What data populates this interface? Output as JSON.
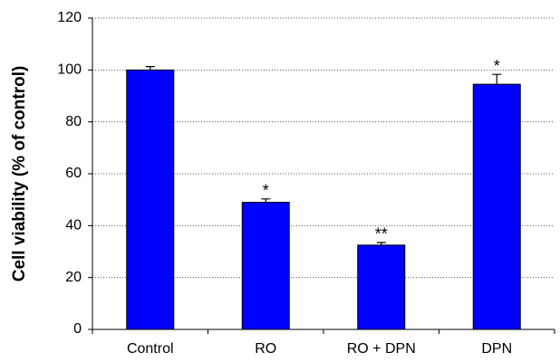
{
  "chart_data": {
    "type": "bar",
    "y_label": "Cell viability (% of control)",
    "categories": [
      "Control",
      "RO",
      "RO + DPN",
      "DPN"
    ],
    "values": [
      100,
      49,
      32.5,
      94.5
    ],
    "errors": [
      1.3,
      1.3,
      1,
      3.8
    ],
    "annotations": [
      null,
      "*",
      "**",
      "*"
    ],
    "color": "#0000ff",
    "ylim": [
      0,
      120
    ],
    "yticks": [
      0,
      20,
      40,
      60,
      80,
      100,
      120
    ],
    "grid": true
  }
}
